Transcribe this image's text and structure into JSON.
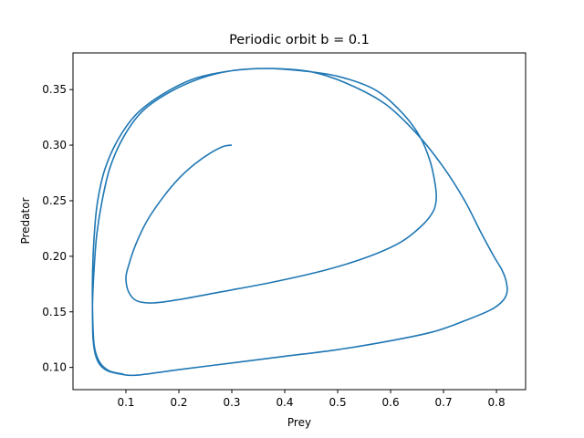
{
  "chart_data": {
    "type": "line",
    "title": "Periodic orbit b = 0.1",
    "xlabel": "Prey",
    "ylabel": "Predator",
    "xlim": [
      0.0,
      0.855
    ],
    "ylim": [
      0.08,
      0.383
    ],
    "xticks": [
      0.1,
      0.2,
      0.3,
      0.4,
      0.5,
      0.6,
      0.7,
      0.8
    ],
    "yticks": [
      0.1,
      0.15,
      0.2,
      0.25,
      0.3,
      0.35
    ],
    "xtick_labels": [
      "0.1",
      "0.2",
      "0.3",
      "0.4",
      "0.5",
      "0.6",
      "0.7",
      "0.8"
    ],
    "ytick_labels": [
      "0.10",
      "0.15",
      "0.20",
      "0.25",
      "0.30",
      "0.35"
    ],
    "grid": false,
    "legend": "none",
    "series_color": "#1f77b4",
    "series": [
      {
        "x": [
          0.3,
          0.285,
          0.26,
          0.23,
          0.2,
          0.17,
          0.14,
          0.118,
          0.104,
          0.1,
          0.105,
          0.12,
          0.15,
          0.2,
          0.28,
          0.38,
          0.48,
          0.56,
          0.62,
          0.66,
          0.68,
          0.686,
          0.685,
          0.675,
          0.655,
          0.62,
          0.57,
          0.5,
          0.43,
          0.365,
          0.3,
          0.24,
          0.18,
          0.13,
          0.095,
          0.07,
          0.055,
          0.045,
          0.04,
          0.037,
          0.037,
          0.038,
          0.042,
          0.05,
          0.065,
          0.09,
          0.12,
          0.2,
          0.3,
          0.4,
          0.5,
          0.6,
          0.68,
          0.74,
          0.79,
          0.812,
          0.82,
          0.818,
          0.81,
          0.795,
          0.77,
          0.74,
          0.7,
          0.65,
          0.59,
          0.52,
          0.45,
          0.37,
          0.3,
          0.23,
          0.17,
          0.12,
          0.085,
          0.06,
          0.046,
          0.04,
          0.037,
          0.037,
          0.04,
          0.05,
          0.068,
          0.095
        ],
        "y": [
          0.3,
          0.299,
          0.293,
          0.283,
          0.27,
          0.253,
          0.232,
          0.21,
          0.19,
          0.18,
          0.168,
          0.16,
          0.158,
          0.161,
          0.168,
          0.177,
          0.188,
          0.2,
          0.213,
          0.228,
          0.24,
          0.25,
          0.262,
          0.285,
          0.308,
          0.33,
          0.35,
          0.362,
          0.367,
          0.369,
          0.367,
          0.36,
          0.347,
          0.33,
          0.307,
          0.28,
          0.25,
          0.22,
          0.19,
          0.16,
          0.14,
          0.125,
          0.112,
          0.103,
          0.097,
          0.094,
          0.093,
          0.098,
          0.104,
          0.11,
          0.116,
          0.124,
          0.132,
          0.142,
          0.152,
          0.16,
          0.168,
          0.178,
          0.188,
          0.2,
          0.222,
          0.25,
          0.28,
          0.31,
          0.337,
          0.355,
          0.366,
          0.369,
          0.367,
          0.36,
          0.346,
          0.328,
          0.305,
          0.278,
          0.248,
          0.218,
          0.185,
          0.15,
          0.12,
          0.105,
          0.097,
          0.094
        ]
      }
    ]
  }
}
